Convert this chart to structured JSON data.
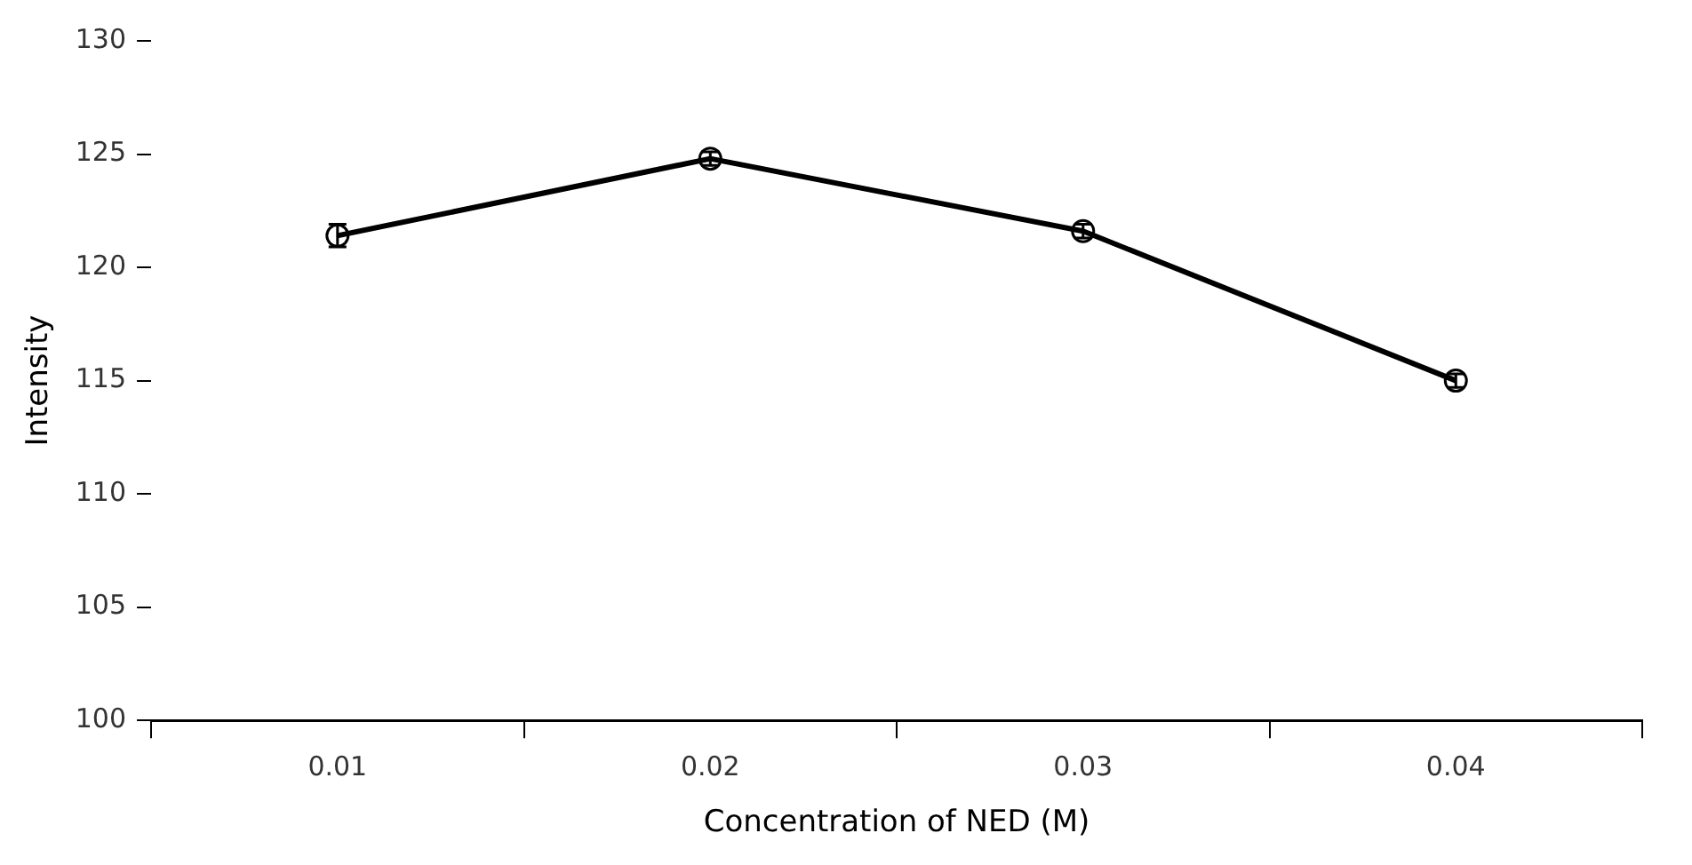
{
  "chart_data": {
    "type": "line",
    "xlabel": "Concentration of NED (M)",
    "ylabel": "Intensity",
    "categories": [
      "0.01",
      "0.02",
      "0.03",
      "0.04"
    ],
    "series": [
      {
        "color": "#000000",
        "values": [
          121.4,
          124.8,
          121.6,
          115.0
        ],
        "errors": [
          0.5,
          0.3,
          0.3,
          0.3
        ]
      }
    ],
    "ylim": [
      100,
      130
    ],
    "yticks": [
      100,
      105,
      110,
      115,
      120,
      125,
      130
    ],
    "grid": false,
    "legend": false,
    "marker": "circle",
    "line_style": "solid"
  }
}
